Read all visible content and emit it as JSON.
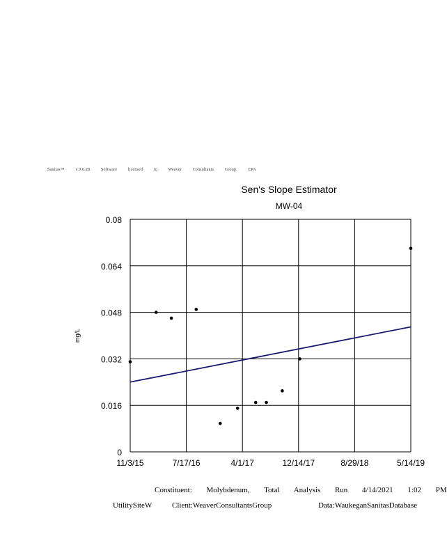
{
  "license_text": "Sanitas™ v.9.6.28 Software licensed to Weaver Consultants Group. EPA",
  "footer": {
    "line1": "Constituent: Molybdenum, Total Analysis Run 4/14/2021 1:02 PM",
    "site": "UtilitySiteW",
    "client": "Client:WeaverConsultantsGroup",
    "data": "Data:WaukeganSanitasDatabase"
  },
  "chart_data": {
    "type": "scatter",
    "title": "Sen's Slope Estimator",
    "subtitle": "MW-04",
    "xlabel": "",
    "ylabel": "mg/L",
    "x_tick_labels": [
      "11/3/15",
      "7/17/16",
      "4/1/17",
      "12/14/17",
      "8/29/18",
      "5/14/19"
    ],
    "x_range": [
      "2015-11-03",
      "2019-05-14"
    ],
    "y_ticks": [
      0,
      0.016,
      0.032,
      0.048,
      0.064,
      0.08
    ],
    "y_tick_labels": [
      "0",
      "0.016",
      "0.032",
      "0.048",
      "0.064",
      "0.08"
    ],
    "ylim": [
      0,
      0.08
    ],
    "grid": true,
    "legend": "none",
    "colors": {
      "points": "#000000",
      "trend": "#1a1a6e",
      "grid": "#000000"
    },
    "series": [
      {
        "values": [
          {
            "x": "2015-11-03",
            "y": 0.031
          },
          {
            "x": "2016-03-01",
            "y": 0.048
          },
          {
            "x": "2016-05-10",
            "y": 0.046
          },
          {
            "x": "2016-09-01",
            "y": 0.049
          },
          {
            "x": "2016-12-20",
            "y": 0.0098
          },
          {
            "x": "2017-03-10",
            "y": 0.015
          },
          {
            "x": "2017-06-01",
            "y": 0.017
          },
          {
            "x": "2017-07-20",
            "y": 0.017
          },
          {
            "x": "2017-10-01",
            "y": 0.021
          },
          {
            "x": "2017-12-20",
            "y": 0.032
          },
          {
            "x": "2019-05-14",
            "y": 0.07
          }
        ]
      }
    ],
    "trend_line": [
      {
        "x": "2015-11-03",
        "y": 0.024
      },
      {
        "x": "2019-05-14",
        "y": 0.043
      }
    ]
  }
}
